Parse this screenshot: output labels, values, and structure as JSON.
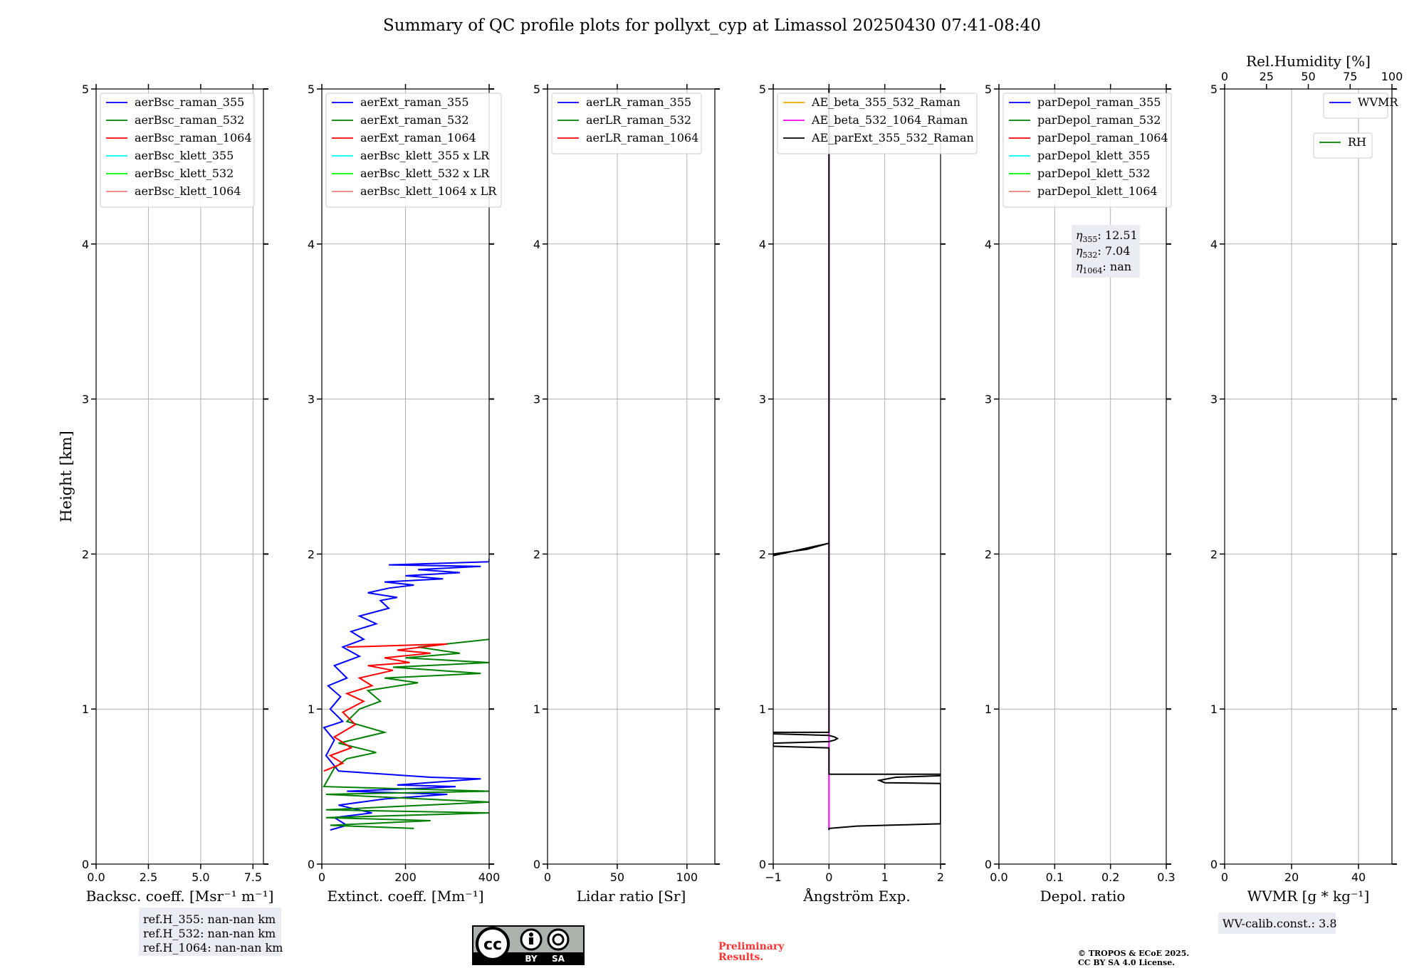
{
  "title": "Summary of QC profile plots for pollyxt_cyp at Limassol 20250430 07:41-08:40",
  "colors": {
    "blue": "#0000ff",
    "green": "#008000",
    "red": "#ff0000",
    "cyan": "#00ffff",
    "lime": "#00ff00",
    "lightred": "#f08080",
    "orange": "#ffa500",
    "magenta": "#ff00ff",
    "black": "#000000",
    "grid": "#b0b0b0",
    "box": "#e9ecf2",
    "prelim": "#ff3333"
  },
  "chart_data": [
    {
      "type": "line",
      "title": "",
      "xlabel": "Backsc. coeff. [Msr⁻¹ m⁻¹]",
      "ylabel": "Height [km]",
      "xlim": [
        0,
        8
      ],
      "ylim": [
        0,
        5
      ],
      "xticks": [
        0,
        2.5,
        5,
        7.5
      ],
      "xticklabels": [
        "0.0",
        "2.5",
        "5.0",
        "7.5"
      ],
      "yticks": [
        0,
        1,
        2,
        3,
        4,
        5
      ],
      "yticklabels": [
        "0",
        "1",
        "2",
        "3",
        "4",
        "5"
      ],
      "grid": true,
      "legend": {
        "placement": "top-left",
        "entries": [
          {
            "label": "aerBsc_raman_355",
            "color": "#0000ff"
          },
          {
            "label": "aerBsc_raman_532",
            "color": "#008000"
          },
          {
            "label": "aerBsc_raman_1064",
            "color": "#ff0000"
          },
          {
            "label": "aerBsc_klett_355",
            "color": "#00ffff"
          },
          {
            "label": "aerBsc_klett_532",
            "color": "#00ff00"
          },
          {
            "label": "aerBsc_klett_1064",
            "color": "#f08080"
          }
        ]
      },
      "series": []
    },
    {
      "type": "line",
      "title": "",
      "xlabel": "Extinct. coeff. [Mm⁻¹]",
      "ylabel": "",
      "xlim": [
        0,
        400
      ],
      "ylim": [
        0,
        5
      ],
      "xticks": [
        0,
        200,
        400
      ],
      "xticklabels": [
        "0",
        "200",
        "400"
      ],
      "yticks": [
        0,
        1,
        2,
        3,
        4,
        5
      ],
      "yticklabels": [
        "0",
        "1",
        "2",
        "3",
        "4",
        "5"
      ],
      "grid": true,
      "legend": {
        "placement": "top-left",
        "entries": [
          {
            "label": "aerExt_raman_355",
            "color": "#0000ff"
          },
          {
            "label": "aerExt_raman_532",
            "color": "#008000"
          },
          {
            "label": "aerExt_raman_1064",
            "color": "#ff0000"
          },
          {
            "label": "aerBsc_klett_355 x LR",
            "color": "#00ffff"
          },
          {
            "label": "aerBsc_klett_532 x LR",
            "color": "#00ff00"
          },
          {
            "label": "aerBsc_klett_1064 x LR",
            "color": "#f08080"
          }
        ]
      },
      "series": [
        {
          "name": "aerExt_raman_355",
          "color": "#0000ff",
          "x": [
            20,
            60,
            30,
            120,
            40,
            150,
            300,
            60,
            250,
            320,
            180,
            380,
            260,
            40,
            10,
            30,
            5,
            50,
            20,
            45,
            15,
            60,
            30,
            90,
            50,
            100,
            70,
            130,
            90,
            160,
            140,
            180,
            110,
            160,
            220,
            150,
            290,
            200,
            330,
            230,
            380,
            160,
            400,
            400
          ],
          "y": [
            0.22,
            0.25,
            0.3,
            0.33,
            0.38,
            0.42,
            0.45,
            0.47,
            0.49,
            0.5,
            0.51,
            0.55,
            0.56,
            0.6,
            0.7,
            0.8,
            0.88,
            0.92,
            1.0,
            1.08,
            1.15,
            1.2,
            1.28,
            1.34,
            1.4,
            1.45,
            1.5,
            1.55,
            1.6,
            1.65,
            1.7,
            1.72,
            1.75,
            1.78,
            1.8,
            1.82,
            1.84,
            1.86,
            1.88,
            1.9,
            1.92,
            1.93,
            1.95,
            1.97
          ]
        },
        {
          "name": "aerExt_raman_532",
          "color": "#008000",
          "x": [
            220,
            20,
            260,
            10,
            400,
            10,
            400,
            10,
            400,
            5,
            30,
            60,
            130,
            40,
            150,
            60,
            90,
            140,
            110,
            230,
            150,
            380,
            170,
            400,
            200,
            330,
            230,
            400
          ],
          "y": [
            0.23,
            0.25,
            0.28,
            0.3,
            0.33,
            0.35,
            0.4,
            0.45,
            0.47,
            0.5,
            0.62,
            0.68,
            0.72,
            0.78,
            0.85,
            0.92,
            1.0,
            1.05,
            1.12,
            1.17,
            1.2,
            1.23,
            1.27,
            1.3,
            1.33,
            1.36,
            1.4,
            1.45
          ]
        },
        {
          "name": "aerExt_raman_1064",
          "color": "#ff0000",
          "x": [
            5,
            50,
            20,
            70,
            30,
            80,
            50,
            100,
            60,
            120,
            90,
            170,
            110,
            210,
            150,
            260,
            180,
            300,
            60
          ],
          "y": [
            0.6,
            0.65,
            0.7,
            0.75,
            0.82,
            0.9,
            0.98,
            1.05,
            1.1,
            1.15,
            1.2,
            1.25,
            1.28,
            1.3,
            1.33,
            1.36,
            1.38,
            1.42,
            1.4
          ]
        }
      ]
    },
    {
      "type": "line",
      "title": "",
      "xlabel": "Lidar ratio [Sr]",
      "ylabel": "",
      "xlim": [
        0,
        120
      ],
      "ylim": [
        0,
        5
      ],
      "xticks": [
        0,
        50,
        100
      ],
      "xticklabels": [
        "0",
        "50",
        "100"
      ],
      "yticks": [
        0,
        1,
        2,
        3,
        4,
        5
      ],
      "yticklabels": [
        "0",
        "1",
        "2",
        "3",
        "4",
        "5"
      ],
      "grid": true,
      "legend": {
        "placement": "top-left",
        "entries": [
          {
            "label": "aerLR_raman_355",
            "color": "#0000ff"
          },
          {
            "label": "aerLR_raman_532",
            "color": "#008000"
          },
          {
            "label": "aerLR_raman_1064",
            "color": "#ff0000"
          }
        ]
      },
      "series": []
    },
    {
      "type": "line",
      "title": "",
      "xlabel": "Ångström Exp.",
      "ylabel": "",
      "xlim": [
        -1,
        2
      ],
      "ylim": [
        0,
        5
      ],
      "xticks": [
        -1,
        0,
        1,
        2
      ],
      "xticklabels": [
        "−1",
        "0",
        "1",
        "2"
      ],
      "yticks": [
        0,
        1,
        2,
        3,
        4,
        5
      ],
      "yticklabels": [
        "0",
        "1",
        "2",
        "3",
        "4",
        "5"
      ],
      "grid": true,
      "legend": {
        "placement": "top-left",
        "entries": [
          {
            "label": "AE_beta_355_532_Raman",
            "color": "#ffa500"
          },
          {
            "label": "AE_beta_532_1064_Raman",
            "color": "#ff00ff"
          },
          {
            "label": "AE_parExt_355_532_Raman",
            "color": "#000000"
          }
        ]
      },
      "series": [
        {
          "name": "AE_beta_532_1064_Raman",
          "color": "#ff00ff",
          "x": [
            0,
            0
          ],
          "y": [
            0.22,
            5
          ]
        },
        {
          "name": "AE_parExt_355_532_Raman",
          "color": "#000000",
          "x": [
            0,
            0,
            0.5,
            1.5,
            2,
            2,
            1.0,
            0.9,
            1.2,
            2,
            2,
            0,
            0,
            -1,
            -1,
            0,
            0.1,
            0.15,
            0.1,
            0,
            -1,
            -1,
            0,
            0,
            -0.4,
            -1,
            -1,
            0,
            0
          ],
          "y": [
            0.22,
            0.23,
            0.245,
            0.255,
            0.26,
            0.52,
            0.525,
            0.54,
            0.56,
            0.57,
            0.58,
            0.58,
            0.75,
            0.76,
            0.78,
            0.79,
            0.8,
            0.81,
            0.82,
            0.83,
            0.84,
            0.85,
            0.85,
            2.07,
            2.03,
            2.0,
            1.99,
            2.07,
            5
          ]
        }
      ]
    },
    {
      "type": "line",
      "title": "",
      "xlabel": "Depol. ratio",
      "ylabel": "",
      "xlim": [
        0,
        0.3
      ],
      "ylim": [
        0,
        5
      ],
      "xticks": [
        0,
        0.1,
        0.2,
        0.3
      ],
      "xticklabels": [
        "0.0",
        "0.1",
        "0.2",
        "0.3"
      ],
      "yticks": [
        0,
        1,
        2,
        3,
        4,
        5
      ],
      "yticklabels": [
        "0",
        "1",
        "2",
        "3",
        "4",
        "5"
      ],
      "grid": true,
      "legend": {
        "placement": "top-left",
        "entries": [
          {
            "label": "parDepol_raman_355",
            "color": "#0000ff"
          },
          {
            "label": "parDepol_raman_532",
            "color": "#008000"
          },
          {
            "label": "parDepol_raman_1064",
            "color": "#ff0000"
          },
          {
            "label": "parDepol_klett_355",
            "color": "#00ffff"
          },
          {
            "label": "parDepol_klett_532",
            "color": "#00ff00"
          },
          {
            "label": "parDepol_klett_1064",
            "color": "#f08080"
          }
        ]
      },
      "annotation": {
        "lines": [
          {
            "sym": "η",
            "sub": "355",
            "value": ": 12.51"
          },
          {
            "sym": "η",
            "sub": "532",
            "value": ": 7.04"
          },
          {
            "sym": "η",
            "sub": "1064",
            "value": ": nan"
          }
        ]
      },
      "series": []
    },
    {
      "type": "line",
      "title": "",
      "xlabel": "WVMR [g * kg⁻¹]",
      "ylabel": "",
      "xlim": [
        0,
        50
      ],
      "ylim": [
        0,
        5
      ],
      "xticks": [
        0,
        20,
        40
      ],
      "xticklabels": [
        "0",
        "20",
        "40"
      ],
      "yticks": [
        0,
        1,
        2,
        3,
        4,
        5
      ],
      "yticklabels": [
        "0",
        "1",
        "2",
        "3",
        "4",
        "5"
      ],
      "grid": true,
      "top_axis": {
        "label": "Rel.Humidity [%]",
        "xlim": [
          0,
          100
        ],
        "xticks": [
          0,
          25,
          50,
          75,
          100
        ],
        "xticklabels": [
          "0",
          "25",
          "50",
          "75",
          "100"
        ]
      },
      "legend": {
        "placement": "top-right",
        "entries": [
          {
            "label": "WVMR",
            "color": "#0000ff"
          }
        ]
      },
      "legend2": {
        "placement": "top-right",
        "entries": [
          {
            "label": "RH",
            "color": "#008000"
          }
        ]
      },
      "series": []
    }
  ],
  "footer": {
    "refh": [
      "ref.H_355: nan-nan km",
      "ref.H_532: nan-nan km",
      "ref.H_1064: nan-nan km"
    ],
    "license_badge": {
      "cc": "cc",
      "by": "BY",
      "sa": "SA"
    },
    "preliminary": [
      "Preliminary",
      "Results."
    ],
    "copyright": [
      "© TROPOS & ECoE 2025.",
      "CC BY SA 4.0 License."
    ],
    "wv_calib": "WV-calib.const.: 3.8"
  }
}
